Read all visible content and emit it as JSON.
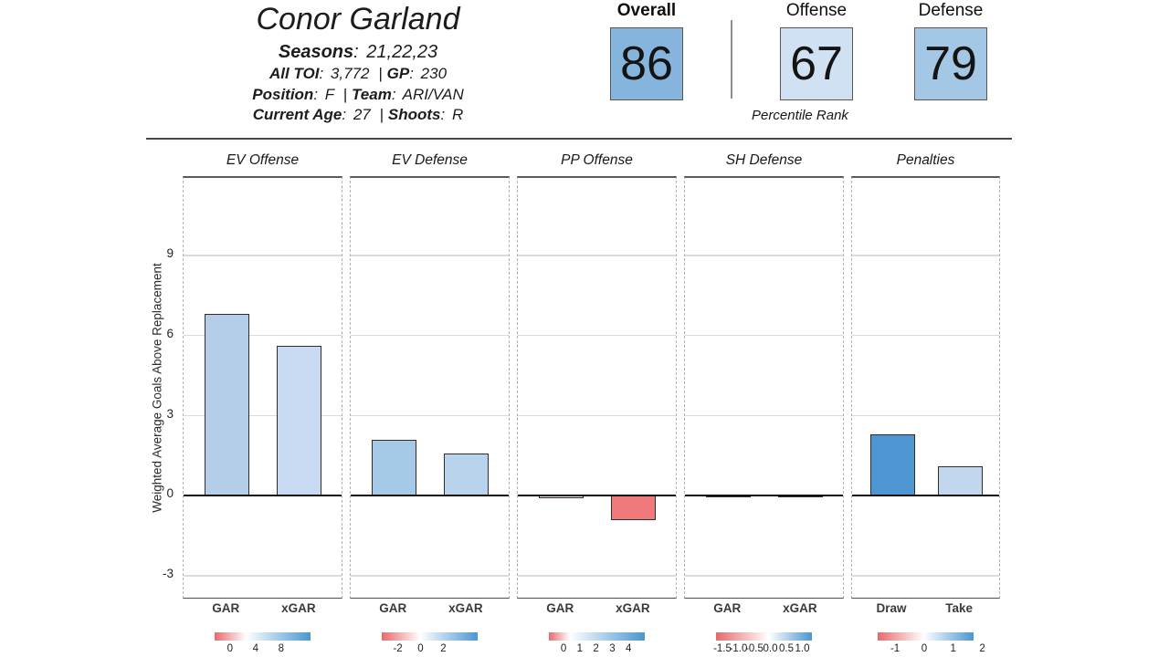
{
  "header": {
    "player_name": "Conor Garland",
    "colon": ":",
    "separator": "|",
    "seasons": {
      "label": "Seasons",
      "value": "21,22,23"
    },
    "toi": {
      "label": "All TOI",
      "value": "3,772"
    },
    "gp": {
      "label": "GP",
      "value": "230"
    },
    "position": {
      "label": "Position",
      "value": "F"
    },
    "team": {
      "label": "Team",
      "value": "ARI/VAN"
    },
    "age": {
      "label": "Current Age",
      "value": "27"
    },
    "shoots": {
      "label": "Shoots",
      "value": "R"
    }
  },
  "percentiles": {
    "caption": "Percentile Rank",
    "items": [
      {
        "label": "Overall",
        "value": "86",
        "color": "#85b4dc"
      },
      {
        "label": "Offense",
        "value": "67",
        "color": "#cfe1f2"
      },
      {
        "label": "Defense",
        "value": "79",
        "color": "#a5c7e6"
      }
    ]
  },
  "chart_data": {
    "type": "bar",
    "ylabel": "Weighted Average Goals Above Replacement",
    "ylim": [
      -3.8,
      11.9
    ],
    "yticks": [
      9,
      6,
      3,
      0,
      -3
    ],
    "gridlines": [
      9,
      6,
      3,
      -3
    ],
    "grid": true,
    "colorbar_red": "#e8696a",
    "colorbar_blue": "#4a96d2",
    "panels": [
      {
        "title": "EV Offense",
        "categories": [
          "GAR",
          "xGAR"
        ],
        "values": [
          6.8,
          5.6
        ],
        "bar_colors": [
          "#b4cde9",
          "#c8daf1"
        ],
        "colorbar": {
          "range": [
            -2.4,
            12.6
          ],
          "tick_labels": [
            "0",
            "4",
            "8"
          ],
          "tick_values": [
            0,
            4,
            8
          ],
          "white_frac": 0.33
        }
      },
      {
        "title": "EV Defense",
        "categories": [
          "GAR",
          "xGAR"
        ],
        "values": [
          2.1,
          1.6
        ],
        "bar_colors": [
          "#a7c9e8",
          "#b9d3ed"
        ],
        "colorbar": {
          "range": [
            -3.4,
            5.0
          ],
          "tick_labels": [
            "-2",
            "0",
            "2"
          ],
          "tick_values": [
            -2,
            0,
            2
          ],
          "white_frac": 0.4
        }
      },
      {
        "title": "PP Offense",
        "categories": [
          "GAR",
          "xGAR"
        ],
        "values": [
          -0.1,
          -0.9
        ],
        "bar_colors": [
          "#f9e9e7",
          "#ef797b"
        ],
        "colorbar": {
          "range": [
            -0.9,
            5.0
          ],
          "tick_labels": [
            "0",
            "1",
            "2",
            "3",
            "4"
          ],
          "tick_values": [
            0,
            1,
            2,
            3,
            4
          ],
          "white_frac": 0.22
        }
      },
      {
        "title": "SH Defense",
        "categories": [
          "GAR",
          "xGAR"
        ],
        "values": [
          0.0,
          0.0
        ],
        "bar_colors": [
          "#fdf4f2",
          "#f5f9fc"
        ],
        "colorbar": {
          "range": [
            -1.7,
            1.3
          ],
          "tick_labels": [
            "-1.5",
            "-1.0",
            "-0.5",
            "0.0",
            "0.5",
            "1.0"
          ],
          "tick_values": [
            -1.5,
            -1.0,
            -0.5,
            0.0,
            0.5,
            1.0
          ],
          "white_frac": 0.55
        }
      },
      {
        "title": "Penalties",
        "categories": [
          "Draw",
          "Take"
        ],
        "values": [
          2.3,
          1.1
        ],
        "bar_colors": [
          "#4d96d2",
          "#c2d7ee"
        ],
        "colorbar": {
          "range": [
            -1.6,
            1.7
          ],
          "tick_labels": [
            "-1",
            "0",
            "1",
            "2"
          ],
          "tick_values": [
            -1,
            0,
            1,
            2
          ],
          "white_frac": 0.48
        }
      }
    ]
  }
}
